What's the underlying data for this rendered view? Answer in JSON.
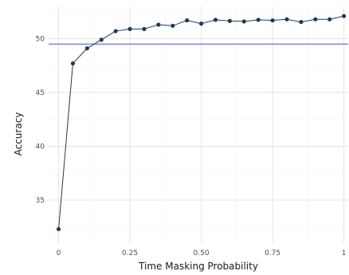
{
  "chart_data": {
    "type": "line",
    "title": "",
    "xlabel": "Time Masking Probability",
    "ylabel": "Accuracy",
    "xlim": [
      -0.035,
      1.015
    ],
    "ylim": [
      31.0,
      53.0
    ],
    "x_ticks": [
      0,
      0.25,
      0.5,
      0.75,
      1
    ],
    "x_tick_labels": [
      "0",
      "0.25",
      "0.50",
      "0.75",
      "1"
    ],
    "y_ticks": [
      35,
      40,
      45,
      50
    ],
    "y_tick_labels": [
      "35",
      "40",
      "45",
      "50"
    ],
    "grid": true,
    "legend": "none",
    "series": [
      {
        "x": [
          0,
          0.05,
          0.1,
          0.15,
          0.2,
          0.25,
          0.3,
          0.35,
          0.4,
          0.45,
          0.5,
          0.55,
          0.6,
          0.65,
          0.7,
          0.75,
          0.8,
          0.85,
          0.9,
          0.95,
          1.0
        ],
        "y": [
          32.3,
          47.7,
          49.1,
          49.9,
          50.7,
          50.9,
          50.9,
          51.3,
          51.2,
          51.7,
          51.4,
          51.75,
          51.65,
          51.6,
          51.75,
          51.7,
          51.8,
          51.55,
          51.8,
          51.8,
          52.1
        ],
        "color": "#1f3a5a"
      }
    ],
    "reference_lines": [
      {
        "orientation": "horizontal",
        "y": 49.5,
        "color": "#4a4adf"
      }
    ]
  }
}
